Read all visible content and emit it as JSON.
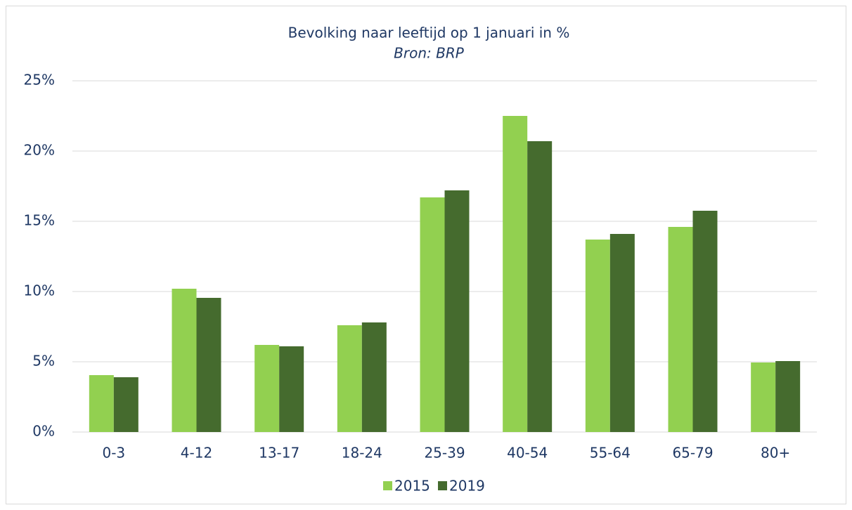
{
  "chart_data": {
    "type": "bar",
    "title": "Bevolking naar leeftijd op 1 januari in %",
    "subtitle": "Bron: BRP",
    "categories": [
      "0-3",
      "4-12",
      "13-17",
      "18-24",
      "25-39",
      "40-54",
      "55-64",
      "65-79",
      "80+"
    ],
    "series": [
      {
        "name": "2015",
        "color": "#92d050",
        "values": [
          4.05,
          10.2,
          6.2,
          7.6,
          16.7,
          22.5,
          13.7,
          14.6,
          4.95
        ]
      },
      {
        "name": "2019",
        "color": "#456b2e",
        "values": [
          3.9,
          9.55,
          6.1,
          7.8,
          17.2,
          20.7,
          14.1,
          15.75,
          5.05
        ]
      }
    ],
    "ylim": [
      0,
      25
    ],
    "yticks": [
      {
        "value": 0,
        "label": "0%"
      },
      {
        "value": 5,
        "label": "5%"
      },
      {
        "value": 10,
        "label": "10%"
      },
      {
        "value": 15,
        "label": "15%"
      },
      {
        "value": 20,
        "label": "20%"
      },
      {
        "value": 25,
        "label": "25%"
      }
    ],
    "grid": true,
    "legend": "bottom"
  }
}
